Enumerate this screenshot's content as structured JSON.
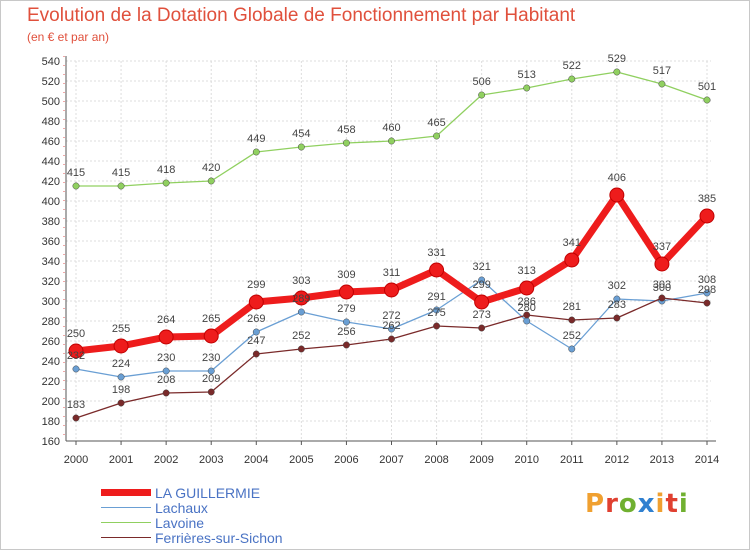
{
  "title": "Evolution de la Dotation Globale de Fonctionnement par Habitant",
  "subtitle": "(en € et par an)",
  "logo_text": "Proxiti",
  "logo_colors": [
    "#f0a030",
    "#e04030",
    "#70b030",
    "#3080d0",
    "#f0a030",
    "#e04030",
    "#70b030"
  ],
  "chart_data": {
    "type": "line",
    "title": "Evolution de la Dotation Globale de Fonctionnement par Habitant",
    "subtitle": "(en € et par an)",
    "xlabel": "",
    "ylabel": "",
    "x": [
      "2000",
      "2001",
      "2002",
      "2003",
      "2004",
      "2005",
      "2006",
      "2007",
      "2008",
      "2009",
      "2010",
      "2011",
      "2012",
      "2013",
      "2014"
    ],
    "ylim": [
      160,
      540
    ],
    "yticks": [
      160,
      180,
      200,
      220,
      240,
      260,
      280,
      300,
      320,
      340,
      360,
      380,
      400,
      420,
      440,
      460,
      480,
      500,
      520,
      540
    ],
    "grid": true,
    "legend": "bottom-left",
    "series": [
      {
        "name": "LA GUILLERMIE",
        "color": "#ee1c1c",
        "emphasis": true,
        "values": [
          250,
          255,
          264,
          265,
          299,
          303,
          309,
          311,
          331,
          299,
          313,
          341,
          406,
          337,
          385
        ],
        "labels": [
          "250",
          "255",
          "264",
          "265",
          "299",
          "303",
          "309",
          "311",
          "331",
          "299",
          "313",
          "341",
          "406",
          "337",
          "385"
        ]
      },
      {
        "name": "Lachaux",
        "color": "#6a9fd4",
        "emphasis": false,
        "values": [
          232,
          224,
          230,
          230,
          269,
          289,
          279,
          272,
          291,
          321,
          280,
          252,
          302,
          300,
          308
        ],
        "labels": [
          "232",
          "224",
          "230",
          "230",
          "269",
          "289",
          "279",
          "272",
          "291",
          "321",
          "280",
          "252",
          "302",
          "300",
          "308"
        ]
      },
      {
        "name": "Lavoine",
        "color": "#90d060",
        "emphasis": false,
        "values": [
          415,
          415,
          418,
          420,
          449,
          454,
          458,
          460,
          465,
          506,
          513,
          522,
          529,
          517,
          501
        ],
        "labels": [
          "415",
          "415",
          "418",
          "420",
          "449",
          "454",
          "458",
          "460",
          "465",
          "506",
          "513",
          "522",
          "529",
          "517",
          "501"
        ]
      },
      {
        "name": "Ferrières-sur-Sichon",
        "color": "#7a2a2a",
        "emphasis": false,
        "values": [
          183,
          198,
          208,
          209,
          247,
          252,
          256,
          262,
          275,
          273,
          286,
          281,
          283,
          303,
          298
        ],
        "labels": [
          "183",
          "198",
          "208",
          "209",
          "247",
          "252",
          "256",
          "262",
          "275",
          "273",
          "286",
          "281",
          "283",
          "303",
          "298"
        ]
      }
    ]
  }
}
